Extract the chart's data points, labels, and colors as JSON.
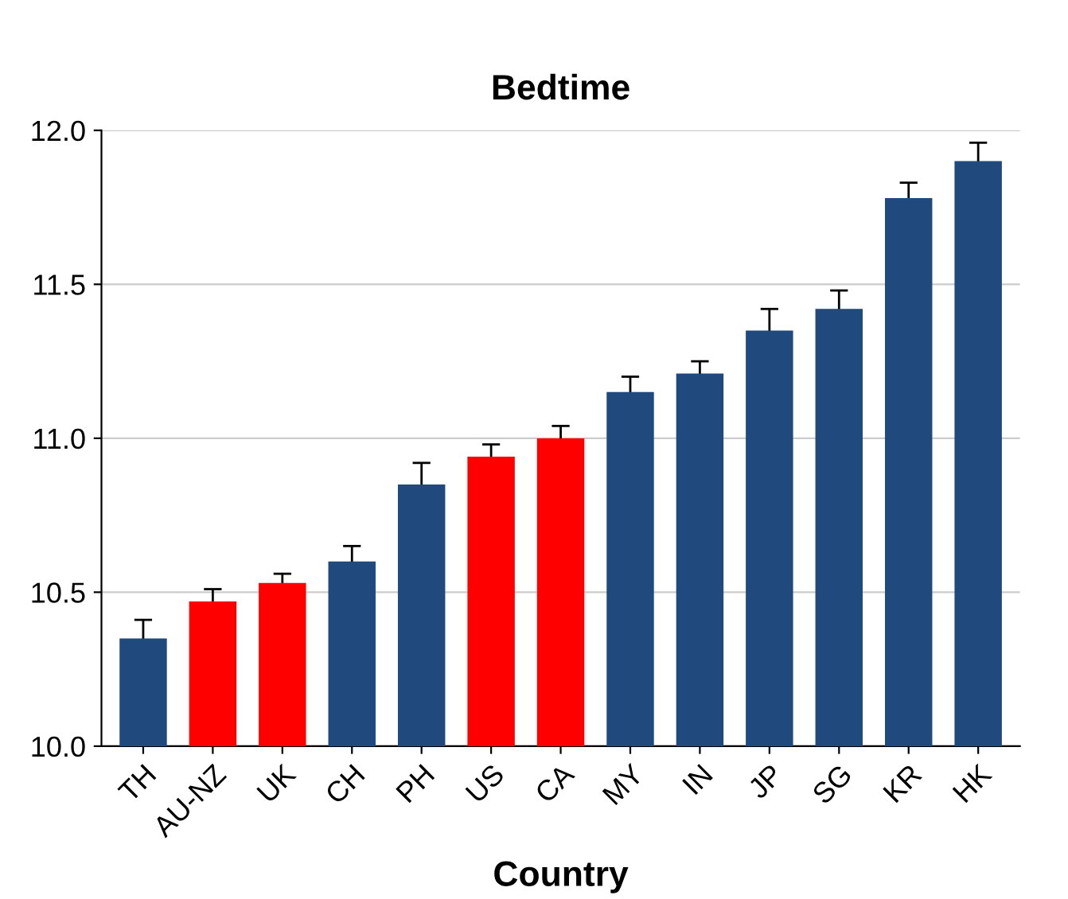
{
  "chart_data": {
    "type": "bar",
    "title": "Bedtime",
    "xlabel": "Country",
    "categories": [
      "TH",
      "AU-NZ",
      "UK",
      "CH",
      "PH",
      "US",
      "CA",
      "MY",
      "IN",
      "JP",
      "SG",
      "KR",
      "HK"
    ],
    "values": [
      10.35,
      10.47,
      10.53,
      10.6,
      10.85,
      10.94,
      11.0,
      11.15,
      11.21,
      11.35,
      11.42,
      11.78,
      11.9
    ],
    "errors": [
      0.06,
      0.04,
      0.03,
      0.05,
      0.07,
      0.04,
      0.04,
      0.05,
      0.04,
      0.07,
      0.06,
      0.05,
      0.06
    ],
    "colors": [
      "#204a7e",
      "#ff0000",
      "#ff0000",
      "#204a7e",
      "#204a7e",
      "#ff0000",
      "#ff0000",
      "#204a7e",
      "#204a7e",
      "#204a7e",
      "#204a7e",
      "#204a7e",
      "#204a7e"
    ],
    "ylim": [
      10.0,
      12.0
    ],
    "yticks": [
      {
        "value": 10.0,
        "label": "10.0"
      },
      {
        "value": 10.5,
        "label": "10.5"
      },
      {
        "value": 11.0,
        "label": "11.0"
      },
      {
        "value": 11.5,
        "label": "11.5"
      },
      {
        "value": 12.0,
        "label": "12.0"
      }
    ],
    "grid": "y"
  }
}
